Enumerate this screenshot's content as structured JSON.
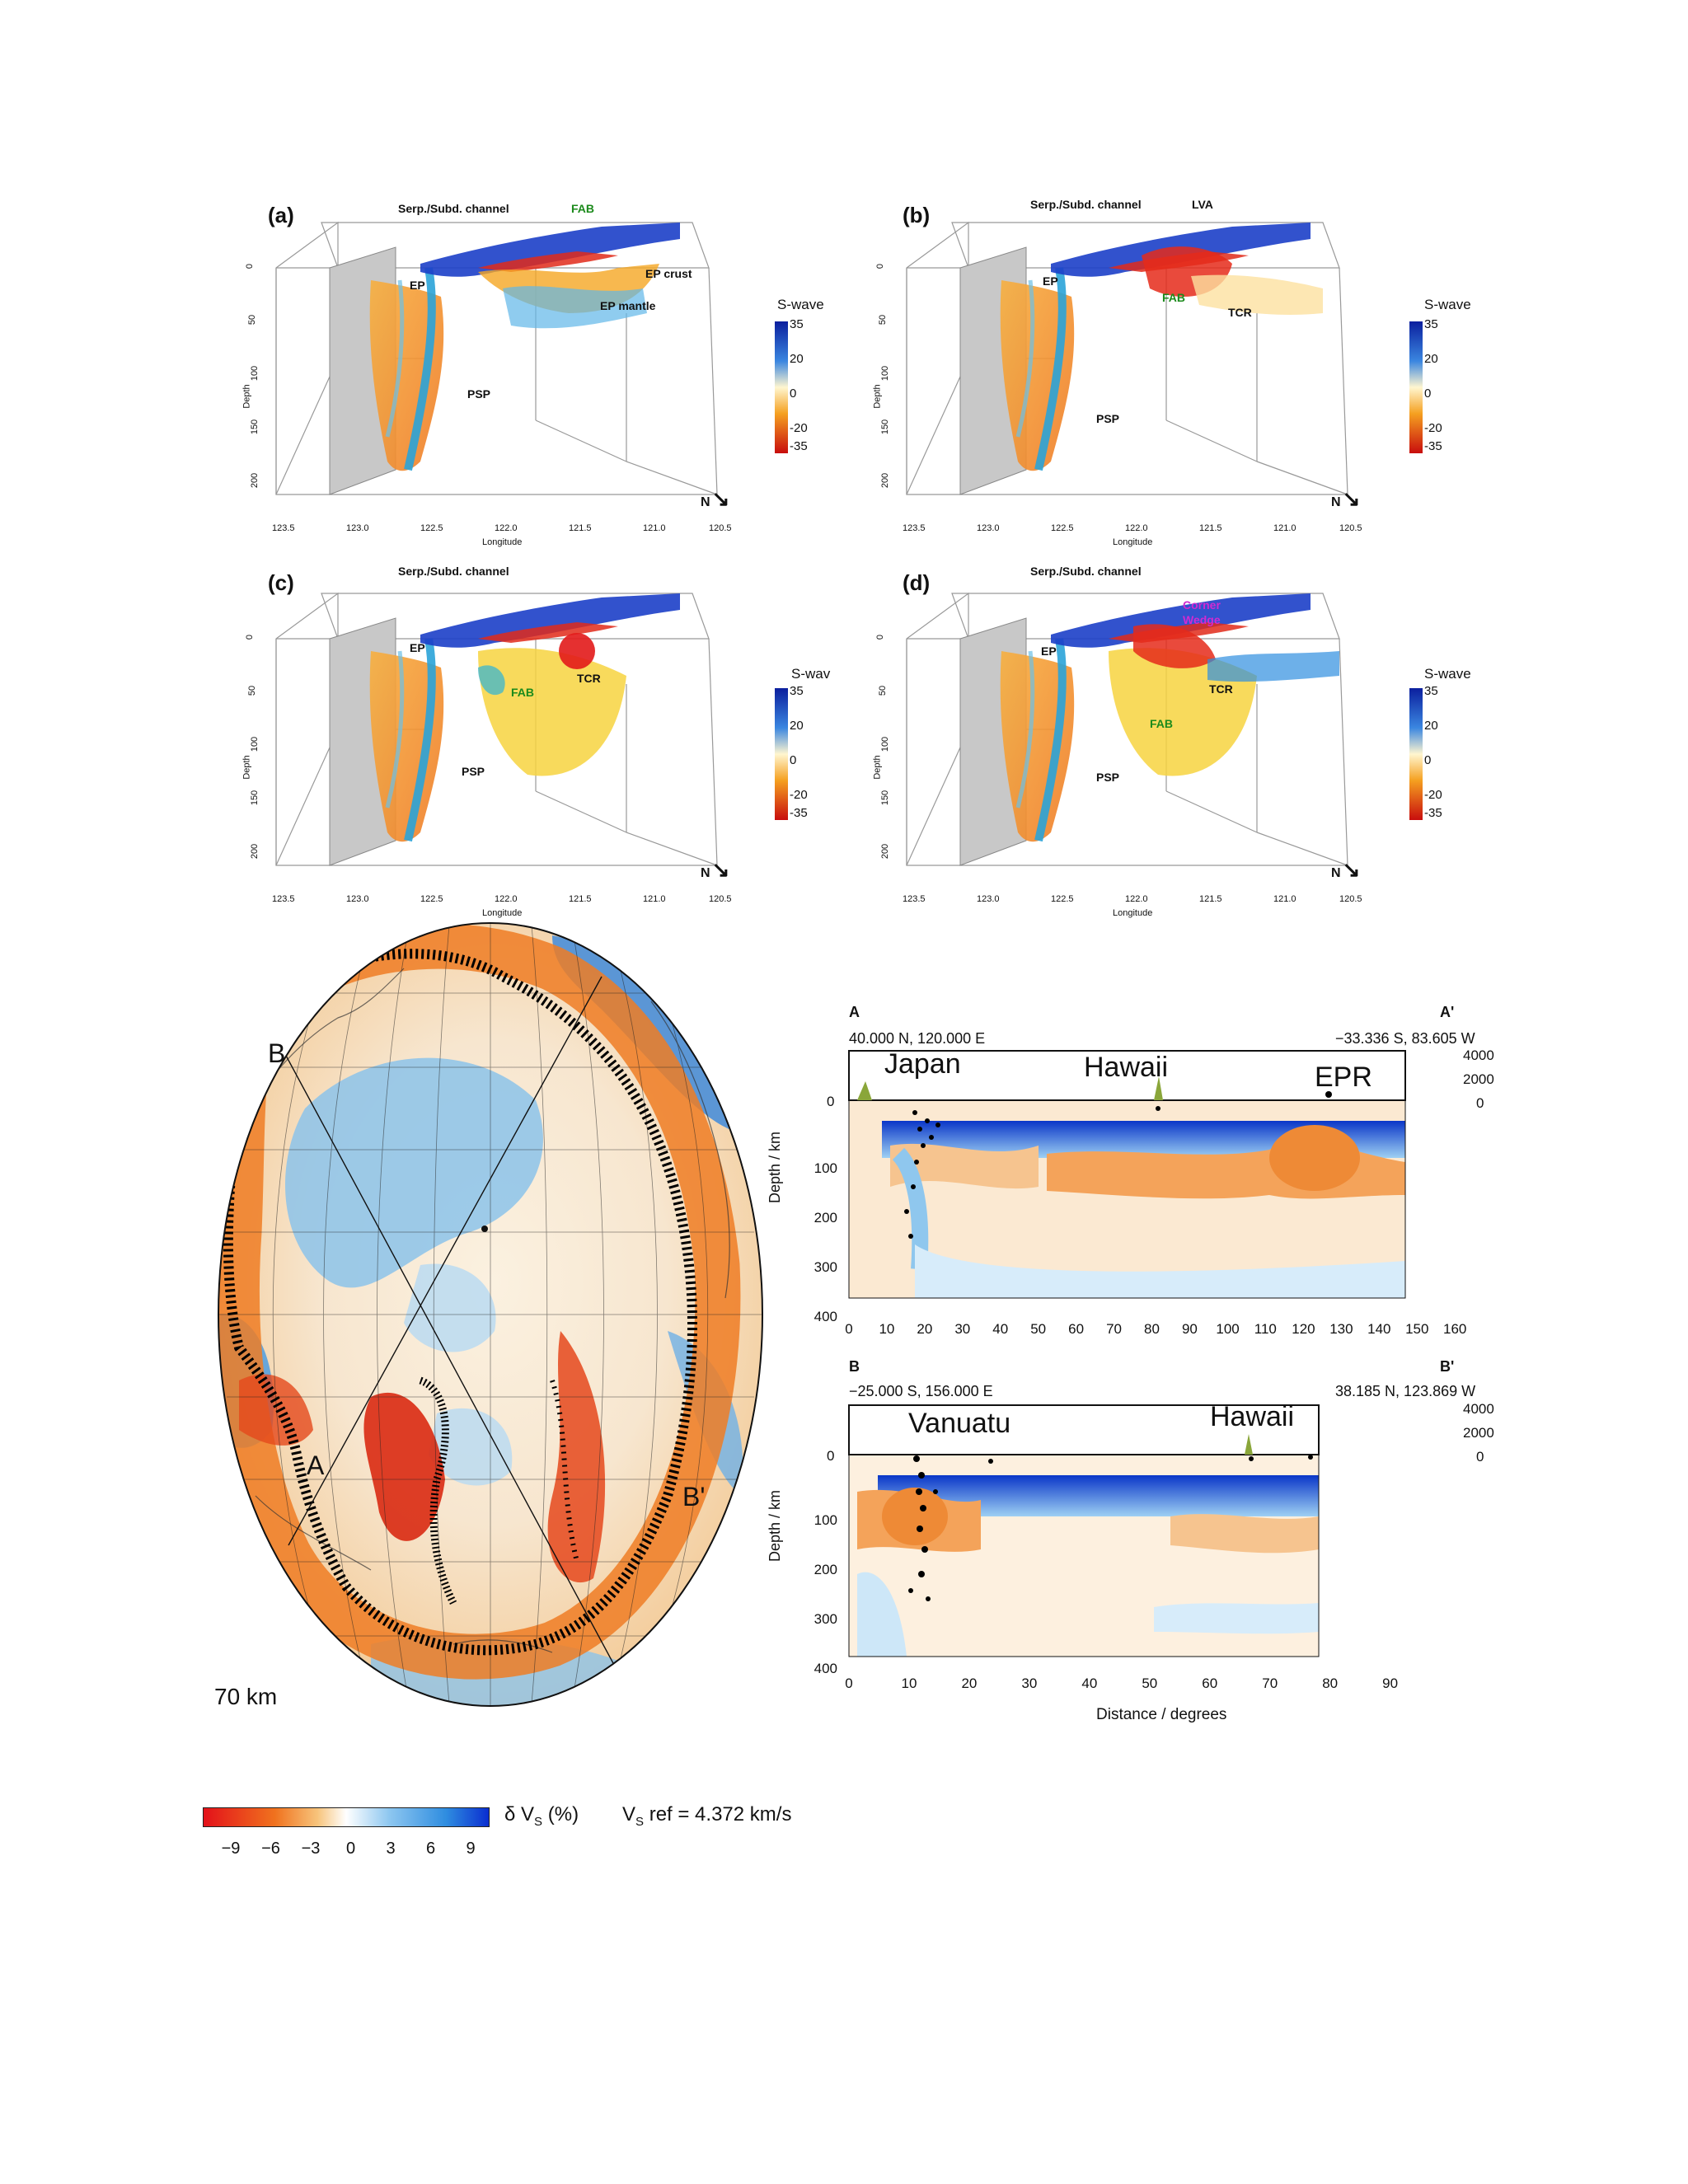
{
  "panels3d": [
    {
      "label": "(a)",
      "serp": "Serp./Subd. channel",
      "ann_top": "FAB",
      "ann_top2": "",
      "ep": "EP",
      "ann_mid1": "EP crust",
      "ann_mid2": "EP mantle",
      "psp": "PSP",
      "tcr": "",
      "fab": "",
      "swave": "S-wave"
    },
    {
      "label": "(b)",
      "serp": "Serp./Subd. channel",
      "ann_top": "LVA",
      "ann_top2": "",
      "ep": "EP",
      "ann_mid1": "",
      "ann_mid2": "",
      "psp": "PSP",
      "tcr": "TCR",
      "fab": "FAB",
      "swave": "S-wave"
    },
    {
      "label": "(c)",
      "serp": "Serp./Subd. channel",
      "ann_top": "",
      "ann_top2": "",
      "ep": "EP",
      "ann_mid1": "",
      "ann_mid2": "",
      "psp": "PSP",
      "tcr": "TCR",
      "fab": "FAB",
      "swave": "S-wav"
    },
    {
      "label": "(d)",
      "serp": "Serp./Subd. channel",
      "ann_top": "Corner",
      "ann_top2": "Wedge",
      "ep": "EP",
      "ann_mid1": "",
      "ann_mid2": "",
      "psp": "PSP",
      "tcr": "TCR",
      "fab": "FAB",
      "swave": "S-wave"
    }
  ],
  "axis3d": {
    "depth_label": "Depth",
    "depth_ticks": [
      "0",
      "50",
      "100",
      "150",
      "200"
    ],
    "lon_label": "Longitude",
    "lon_ticks": [
      "123.5",
      "123.0",
      "122.5",
      "122.0",
      "121.5",
      "121.0",
      "120.5"
    ],
    "cbar_ticks": [
      "35",
      "20",
      "0",
      "-20",
      "-35"
    ],
    "north": "N"
  },
  "map": {
    "depth_label": "70 km",
    "point_A": "A",
    "point_B": "B",
    "point_B_prime": "B'"
  },
  "section_A": {
    "start": "A",
    "end": "A'",
    "start_coord": "40.000 N, 120.000 E",
    "end_coord": "−33.336 S, 83.605 W",
    "labels": [
      "Japan",
      "Hawaii",
      "EPR"
    ],
    "elev_ticks": [
      "4000",
      "2000",
      "0"
    ],
    "zero": "0",
    "depth_ticks": [
      "100",
      "200",
      "300",
      "400"
    ],
    "ylabel": "Depth / km",
    "x_ticks": [
      "0",
      "10",
      "20",
      "30",
      "40",
      "50",
      "60",
      "70",
      "80",
      "90",
      "100",
      "110",
      "120",
      "130",
      "140",
      "150",
      "160"
    ]
  },
  "section_B": {
    "start": "B",
    "end": "B'",
    "start_coord": "−25.000 S, 156.000 E",
    "end_coord": "38.185 N, 123.869 W",
    "labels": [
      "Vanuatu",
      "Hawaii"
    ],
    "elev_ticks": [
      "4000",
      "2000",
      "0"
    ],
    "zero": "0",
    "depth_ticks": [
      "100",
      "200",
      "300",
      "400"
    ],
    "ylabel": "Depth / km",
    "x_ticks": [
      "0",
      "10",
      "20",
      "30",
      "40",
      "50",
      "60",
      "70",
      "80",
      "90"
    ],
    "xlabel": "Distance / degrees"
  },
  "colorbar": {
    "ticks": [
      "−9",
      "−6",
      "−3",
      "0",
      "3",
      "6",
      "9"
    ],
    "label": "δ V",
    "label_sub": "S",
    "label_unit": " (%)",
    "ref_V": "V",
    "ref_sub": "S",
    "ref_text": " ref = 4.372 km/s"
  },
  "colors": {
    "red": "#d7191c",
    "orange": "#f08a2c",
    "pale": "#fbe3c2",
    "lightblue": "#bfe0f5",
    "blue": "#2b7bd6",
    "darkblue": "#0b2fb0"
  }
}
